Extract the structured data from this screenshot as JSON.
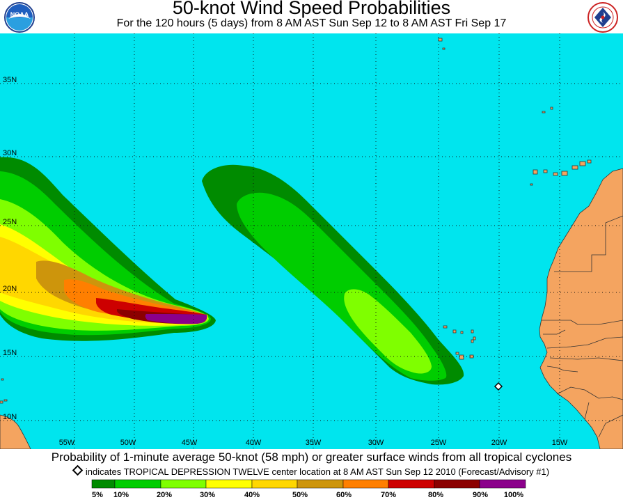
{
  "title": "50-knot Wind Speed Probabilities",
  "subtitle": "For the 120 hours (5 days) from 8 AM AST Sun Sep 12 to 8 AM AST Fri Sep 17",
  "logos": {
    "left": {
      "icon": "noaa-logo",
      "text": "NOAA"
    },
    "right": {
      "icon": "nws-logo"
    }
  },
  "map": {
    "ocean_color": "#00e5ee",
    "land_color": "#f4a460",
    "latitude_labels": [
      "35N",
      "30N",
      "25N",
      "20N",
      "15N",
      "10N"
    ],
    "longitude_labels": [
      "55W",
      "50W",
      "45W",
      "40W",
      "35W",
      "30W",
      "25W",
      "20W",
      "15W"
    ]
  },
  "caption": "Probability of 1-minute average 50-knot (58 mph) or greater surface winds from all tropical cyclones",
  "storm_note": "indicates TROPICAL DEPRESSION TWELVE center location at 8 AM AST Sun Sep 12 2010 (Forecast/Advisory #1)",
  "legend": {
    "colors": [
      "#008b00",
      "#00cd00",
      "#7fff00",
      "#ffff00",
      "#ffd700",
      "#cd950c",
      "#ff7f00",
      "#cd0000",
      "#8b0000",
      "#8b008b"
    ],
    "labels": [
      "5%",
      "10%",
      "20%",
      "30%",
      "40%",
      "50%",
      "60%",
      "70%",
      "80%",
      "90%",
      "100%"
    ]
  }
}
